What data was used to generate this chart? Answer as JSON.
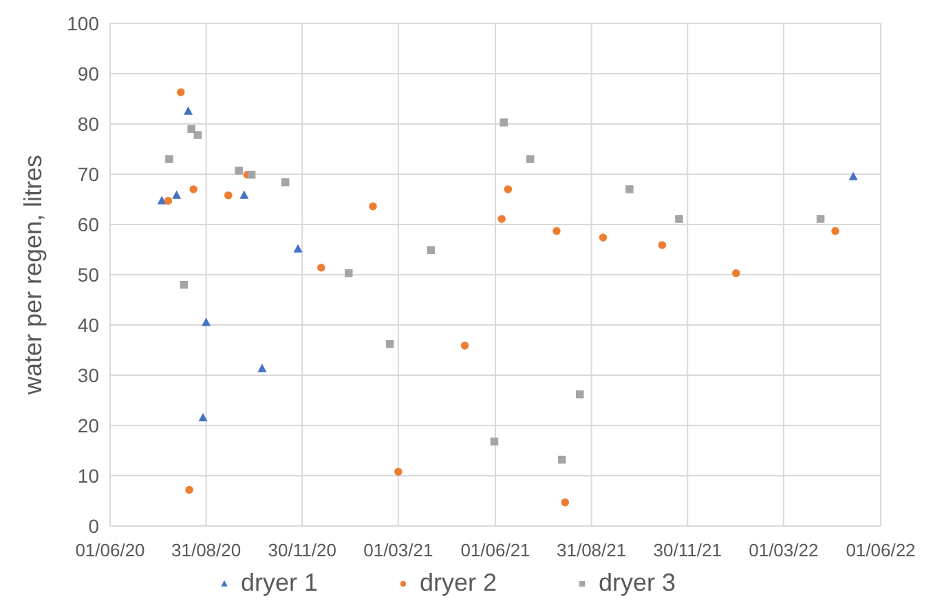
{
  "chart_data": {
    "type": "scatter",
    "ylabel": "water per regen, litres",
    "xlim": [
      "2020-06-01",
      "2022-06-01"
    ],
    "xticks": [
      {
        "value": "2020-06-01",
        "label": "01/06/20"
      },
      {
        "value": "2020-08-31",
        "label": "31/08/20"
      },
      {
        "value": "2020-11-30",
        "label": "30/11/20"
      },
      {
        "value": "2021-03-01",
        "label": "01/03/21"
      },
      {
        "value": "2021-06-01",
        "label": "01/06/21"
      },
      {
        "value": "2021-08-31",
        "label": "31/08/21"
      },
      {
        "value": "2021-11-30",
        "label": "30/11/21"
      },
      {
        "value": "2022-03-01",
        "label": "01/03/22"
      },
      {
        "value": "2022-06-01",
        "label": "01/06/22"
      }
    ],
    "ylim": [
      0,
      100
    ],
    "yticks": [
      0,
      10,
      20,
      30,
      40,
      50,
      60,
      70,
      80,
      90,
      100
    ],
    "grid": true,
    "legend": "bottom",
    "series": [
      {
        "name": "dryer 1",
        "color": "#4472c4",
        "marker": "triangle",
        "x": [
          "2020-07-20",
          "2020-08-03",
          "2020-08-14",
          "2020-08-28",
          "2020-08-31",
          "2020-10-06",
          "2020-10-23",
          "2020-11-26",
          "2022-05-06"
        ],
        "values": [
          64.7,
          65.8,
          82.5,
          21.5,
          40.5,
          65.8,
          31.3,
          55.1,
          69.5
        ]
      },
      {
        "name": "dryer 2",
        "color": "#ed7d31",
        "marker": "circle",
        "x": [
          "2020-07-26",
          "2020-08-07",
          "2020-08-15",
          "2020-08-19",
          "2020-09-21",
          "2020-10-09",
          "2020-12-18",
          "2021-02-05",
          "2021-03-01",
          "2021-05-03",
          "2021-06-07",
          "2021-06-13",
          "2021-07-29",
          "2021-08-06",
          "2021-09-11",
          "2021-11-06",
          "2022-01-15",
          "2022-04-19"
        ],
        "values": [
          64.7,
          86.3,
          7.2,
          67.0,
          65.8,
          69.9,
          51.4,
          63.6,
          10.8,
          35.9,
          61.1,
          67.0,
          58.7,
          4.7,
          57.4,
          55.9,
          50.3,
          58.7
        ]
      },
      {
        "name": "dryer 3",
        "color": "#a5a5a5",
        "marker": "square",
        "x": [
          "2020-07-27",
          "2020-08-10",
          "2020-08-17",
          "2020-08-23",
          "2020-10-01",
          "2020-10-13",
          "2020-11-14",
          "2021-01-13",
          "2021-02-21",
          "2021-04-01",
          "2021-05-31",
          "2021-06-09",
          "2021-07-04",
          "2021-08-03",
          "2021-08-20",
          "2021-10-06",
          "2021-11-22",
          "2022-04-05"
        ],
        "values": [
          73.0,
          48.0,
          79.0,
          77.8,
          70.7,
          69.9,
          68.4,
          50.3,
          36.2,
          54.9,
          16.8,
          80.3,
          73.0,
          13.2,
          26.2,
          67.0,
          61.1,
          61.1
        ]
      }
    ]
  }
}
